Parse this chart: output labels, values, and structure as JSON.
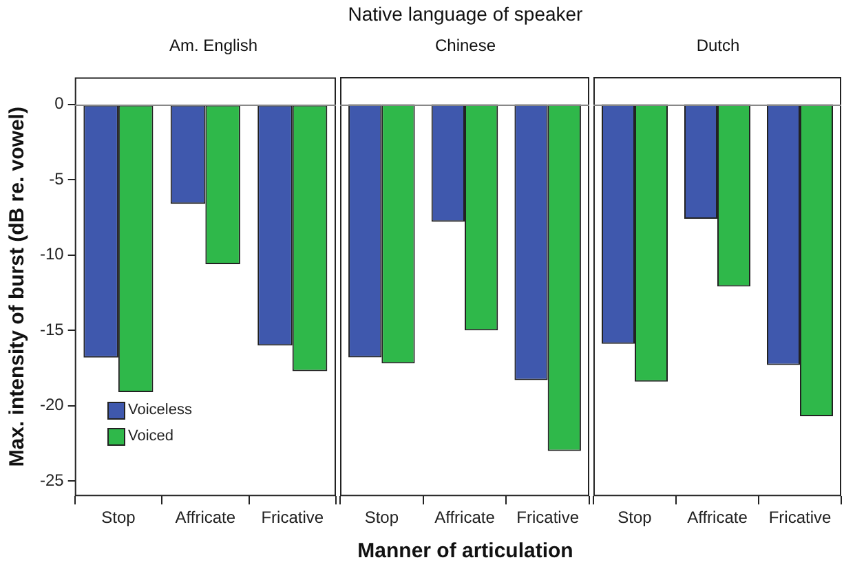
{
  "chart_data": [
    {
      "type": "bar",
      "subtitle": "Am. English",
      "ylabel": "Max. intensity of burst (dB re. vowel)",
      "categories": [
        "Stop",
        "Affricate",
        "Fricative"
      ],
      "series": [
        {
          "name": "Voiceless",
          "color": "#3f58ad",
          "values": [
            -16.8,
            -6.6,
            -16.0
          ]
        },
        {
          "name": "Voiced",
          "color": "#2fb84a",
          "values": [
            -19.1,
            -10.6,
            -17.7
          ]
        }
      ],
      "ylim": [
        -26,
        1.8
      ],
      "yticks": [
        0,
        -5,
        -10,
        -15,
        -20,
        -25
      ],
      "legend": "bottom left",
      "grid": false,
      "ref_lines": [
        {
          "axis": "y",
          "value": 0,
          "color": "#888888"
        }
      ]
    },
    {
      "type": "bar",
      "title": "Native language of speaker",
      "subtitle": "Chinese",
      "xlabel": "Manner of articulation",
      "categories": [
        "Stop",
        "Affricate",
        "Fricative"
      ],
      "series": [
        {
          "color": "#3f58ad",
          "values": [
            -16.8,
            -7.8,
            -18.3
          ]
        },
        {
          "color": "#2fb84a",
          "values": [
            -17.2,
            -15.0,
            -23.0
          ]
        }
      ],
      "ylim": [
        -26,
        1.8
      ],
      "tick_labels": "x",
      "grid": false,
      "ref_lines": [
        {
          "axis": "y",
          "value": 0,
          "color": "#888888"
        }
      ]
    },
    {
      "type": "bar",
      "subtitle": "Dutch",
      "categories": [
        "Stop",
        "Affricate",
        "Fricative"
      ],
      "series": [
        {
          "color": "#3f58ad",
          "values": [
            -15.9,
            -7.6,
            -17.3
          ]
        },
        {
          "color": "#2fb84a",
          "values": [
            -18.4,
            -12.1,
            -20.7
          ]
        }
      ],
      "ylim": [
        -26,
        1.8
      ],
      "tick_labels": "x",
      "grid": false,
      "ref_lines": [
        {
          "axis": "y",
          "value": 0,
          "color": "#888888"
        }
      ]
    }
  ]
}
